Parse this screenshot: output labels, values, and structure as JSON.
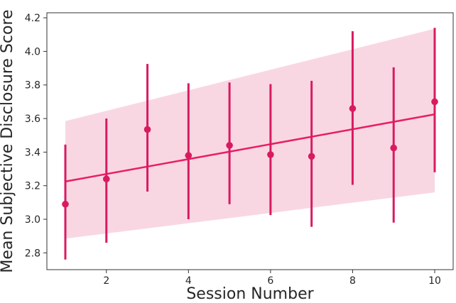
{
  "chart_data": {
    "type": "scatter",
    "xlabel": "Session Number",
    "ylabel": "Mean Subjective Disclosure Score",
    "xlim": [
      0.55,
      10.45
    ],
    "ylim": [
      2.7,
      4.23
    ],
    "x_ticks": [
      2,
      4,
      6,
      8,
      10
    ],
    "y_ticks": [
      2.8,
      3.0,
      3.2,
      3.4,
      3.6,
      3.8,
      4.0,
      4.2
    ],
    "y_tick_labels": [
      "2.8",
      "3.0",
      "3.2",
      "3.4",
      "3.6",
      "3.8",
      "4.0",
      "4.2"
    ],
    "grid": false,
    "series": [
      {
        "x": [
          1,
          2,
          3,
          4,
          5,
          6,
          7,
          8,
          9,
          10
        ],
        "y": [
          3.09,
          3.24,
          3.535,
          3.38,
          3.44,
          3.385,
          3.375,
          3.66,
          3.425,
          3.7
        ],
        "err_low": [
          2.76,
          2.86,
          3.165,
          3.0,
          3.09,
          3.025,
          2.955,
          3.205,
          2.98,
          3.28
        ],
        "err_high": [
          3.445,
          3.6,
          3.925,
          3.81,
          3.815,
          3.805,
          3.825,
          4.12,
          3.905,
          4.14
        ]
      }
    ],
    "regression": {
      "x": [
        1,
        10
      ],
      "y": [
        3.225,
        3.625
      ],
      "ci_lower": [
        2.885,
        3.16
      ],
      "ci_upper": [
        3.585,
        4.135
      ]
    },
    "colors": {
      "marker": "#d81b60",
      "line": "#e91e63",
      "band": "#f8d7e3",
      "axis": "#333333"
    }
  }
}
